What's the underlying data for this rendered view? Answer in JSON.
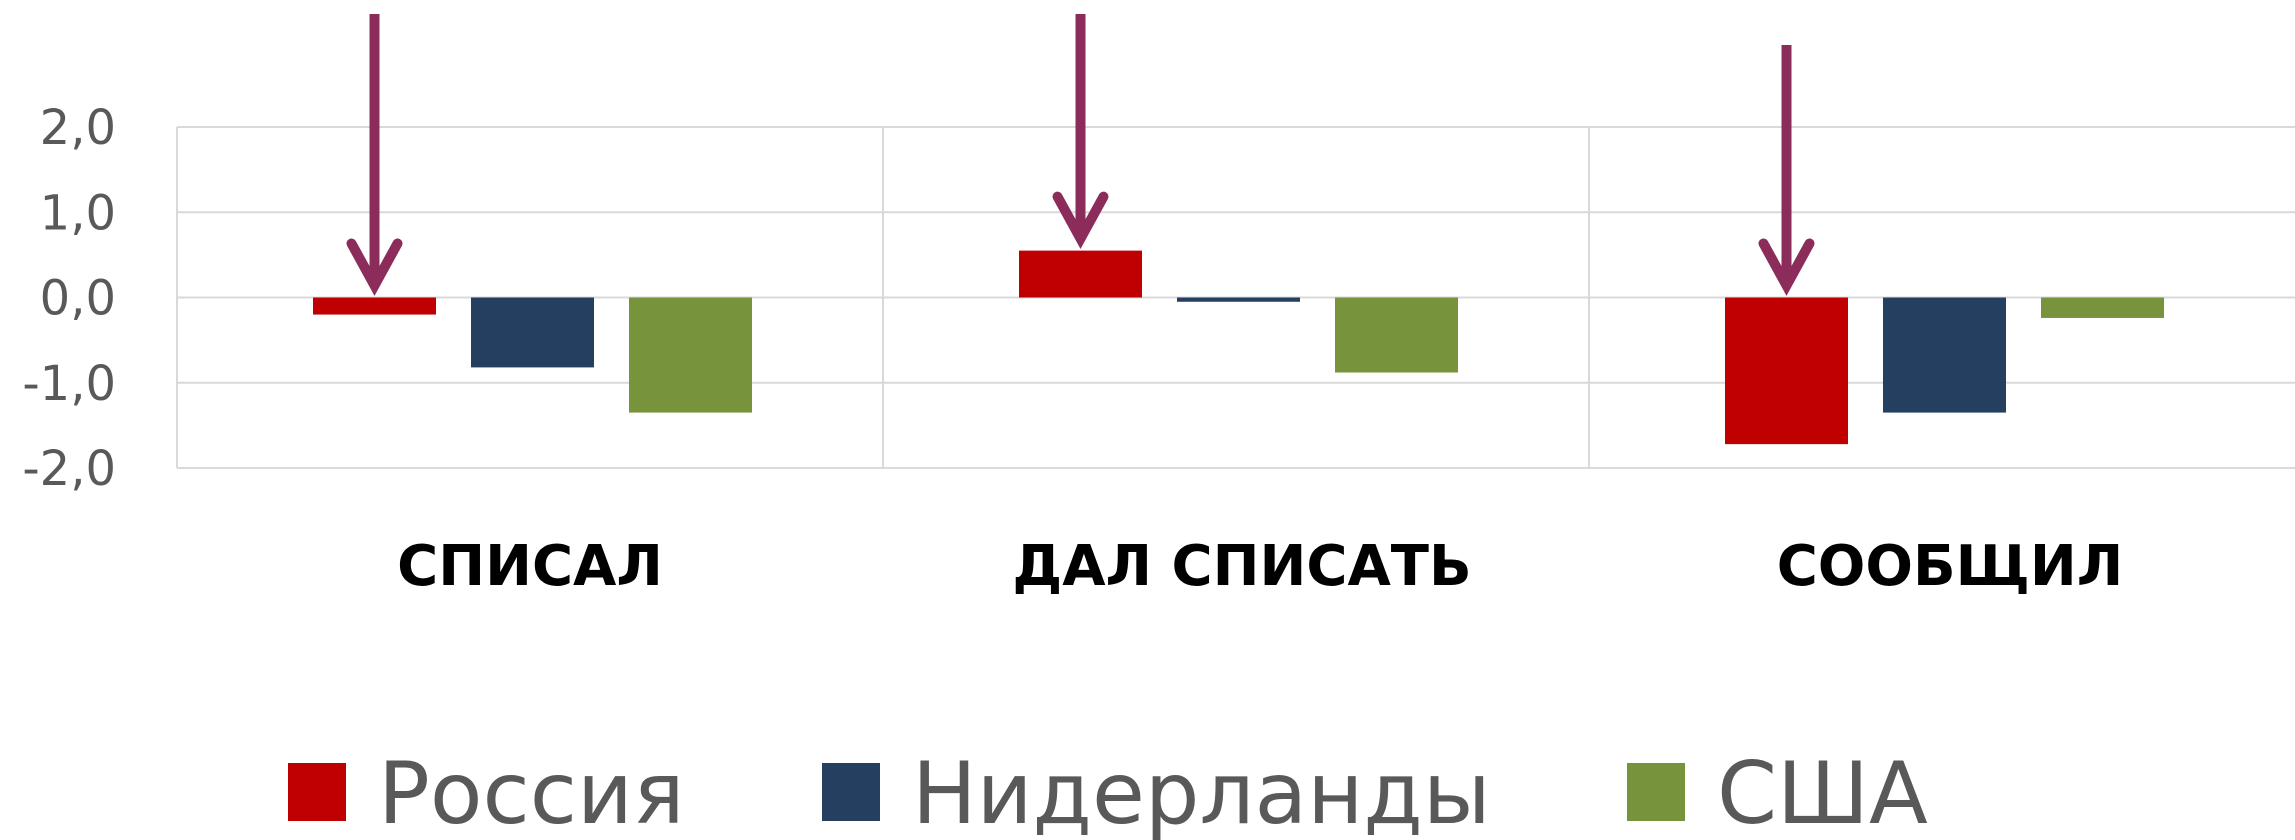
{
  "chart_data": {
    "type": "bar",
    "categories": [
      "СПИСАЛ",
      "ДАЛ СПИСАТЬ",
      "СООБЩИЛ"
    ],
    "series": [
      {
        "name": "Россия",
        "color": "#c00000",
        "values": [
          -0.2,
          0.55,
          -1.72
        ]
      },
      {
        "name": "Нидерланды",
        "color": "#243f60",
        "values": [
          -0.82,
          -0.05,
          -1.35
        ]
      },
      {
        "name": "США",
        "color": "#77933c",
        "values": [
          -1.35,
          -0.88,
          -0.24
        ]
      }
    ],
    "ylim": [
      -2.0,
      2.0
    ],
    "yticks": [
      "2,0",
      "1,0",
      "0,0",
      "-1,0",
      "-2,0"
    ],
    "ytick_values": [
      2,
      1,
      0,
      -1,
      -2
    ],
    "grid": true,
    "legend": "bottom",
    "annotations": [
      {
        "type": "arrow",
        "color": "#8b2c5a",
        "points_to": "Россия",
        "category": "СПИСАЛ"
      },
      {
        "type": "arrow",
        "color": "#8b2c5a",
        "points_to": "Россия",
        "category": "ДАЛ СПИСАТЬ"
      },
      {
        "type": "arrow",
        "color": "#8b2c5a",
        "points_to": "Россия",
        "category": "СООБЩИЛ"
      }
    ],
    "title": "",
    "xlabel": "",
    "ylabel": ""
  }
}
